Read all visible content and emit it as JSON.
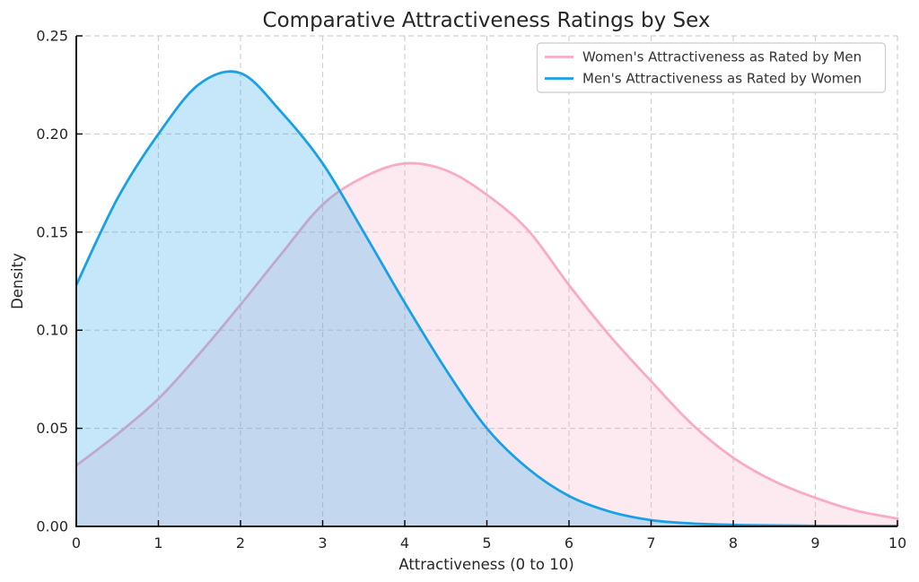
{
  "title": "Comparative Attractiveness Ratings by Sex",
  "axes": {
    "xlabel": "Attractiveness (0 to 10)",
    "ylabel": "Density",
    "x_ticks": [
      "0",
      "1",
      "2",
      "3",
      "4",
      "5",
      "6",
      "7",
      "8",
      "9",
      "10"
    ],
    "y_ticks": [
      "0.00",
      "0.05",
      "0.10",
      "0.15",
      "0.20",
      "0.25"
    ]
  },
  "legend": {
    "position": "upper right",
    "entries": [
      {
        "label": "Women's Attractiveness as Rated by Men",
        "color": "#f9abc4"
      },
      {
        "label": "Men's Attractiveness as Rated by Women",
        "color": "#18a1e6"
      }
    ]
  },
  "colors": {
    "pink_line": "#f9abc4",
    "blue_line": "#18a1e6",
    "grid": "#d0d0d0",
    "spine": "#000000",
    "text": "#262626"
  },
  "chart_data": {
    "type": "area",
    "title": "Comparative Attractiveness Ratings by Sex",
    "xlabel": "Attractiveness (0 to 10)",
    "ylabel": "Density",
    "xlim": [
      0,
      10
    ],
    "ylim": [
      0,
      0.25
    ],
    "grid": "dashed on both axes",
    "legend_position": "upper right",
    "x": [
      0,
      0.5,
      1,
      1.5,
      2,
      2.5,
      3,
      3.5,
      4,
      4.5,
      5,
      5.5,
      6,
      6.5,
      7,
      7.5,
      8,
      8.5,
      9,
      9.5,
      10
    ],
    "series": [
      {
        "name": "Women's Attractiveness as Rated by Men",
        "color": "#f9abc4",
        "fill_opacity": 0.25,
        "peak": {
          "x": 4.1,
          "density": 0.185
        },
        "values": [
          0.031,
          0.047,
          0.065,
          0.088,
          0.113,
          0.139,
          0.164,
          0.178,
          0.185,
          0.1815,
          0.169,
          0.151,
          0.123,
          0.097,
          0.074,
          0.052,
          0.035,
          0.023,
          0.0146,
          0.008,
          0.004
        ]
      },
      {
        "name": "Men's Attractiveness as Rated by Women",
        "color": "#18a1e6",
        "fill_opacity": 0.25,
        "peak": {
          "x": 2.0,
          "density": 0.231
        },
        "values": [
          0.123,
          0.167,
          0.2,
          0.2255,
          0.231,
          0.211,
          0.185,
          0.15,
          0.114,
          0.08,
          0.05,
          0.0295,
          0.0155,
          0.0075,
          0.0032,
          0.0015,
          0.0008,
          0.0005,
          0.0003,
          0.0002,
          0.0002
        ]
      }
    ]
  }
}
